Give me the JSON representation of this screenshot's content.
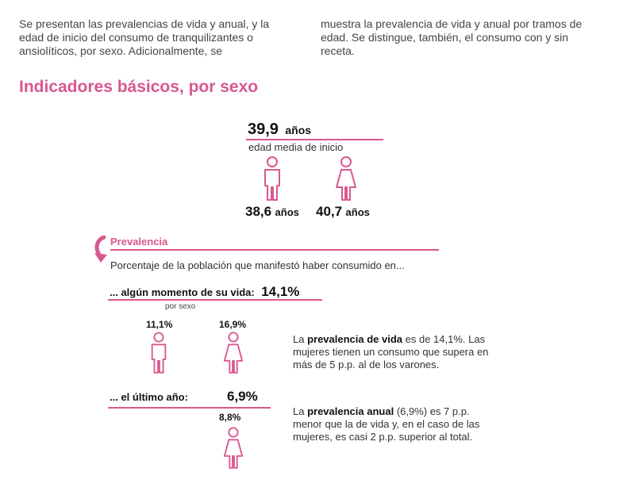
{
  "intro": {
    "col1": "Se presentan las prevalencias de vida y anual, y la edad de inicio del consumo de tranquilizantes o ansiolíticos, por sexo. Adicionalmente, se",
    "col2": "muestra la prevalencia de vida y anual por tramos de edad. Se distingue, también, el consumo con y sin receta."
  },
  "section_title": "Indicadores básicos, por sexo",
  "age": {
    "value": "39,9",
    "unit": "años",
    "label": "edad media de inicio",
    "male_value": "38,6",
    "female_value": "40,7",
    "unit_small": "años"
  },
  "prevalence": {
    "title": "Prevalencia",
    "subtitle": "Porcentaje de la población que manifestó haber consumido en...",
    "life_label": "... algún momento de su vida:",
    "life_value": "14,1%",
    "by_sex": "por sexo",
    "life_male": "11,1%",
    "life_female": "16,9%",
    "life_note_pre": "La ",
    "life_note_bold": "prevalencia de vida",
    "life_note_post": " es de 14,1%. Las mujeres tienen un consumo que supera en más de 5 p.p. al de los varones.",
    "year_label": "... el último año:",
    "year_value": "6,9%",
    "year_female": "8,8%",
    "year_note_pre": "La ",
    "year_note_bold": "prevalencia anual",
    "year_note_post": " (6,9%) es 7 p.p. menor que la de vida y, en el caso de las mujeres, es casi 2 p.p. superior al total."
  },
  "colors": {
    "accent": "#d9578f"
  }
}
